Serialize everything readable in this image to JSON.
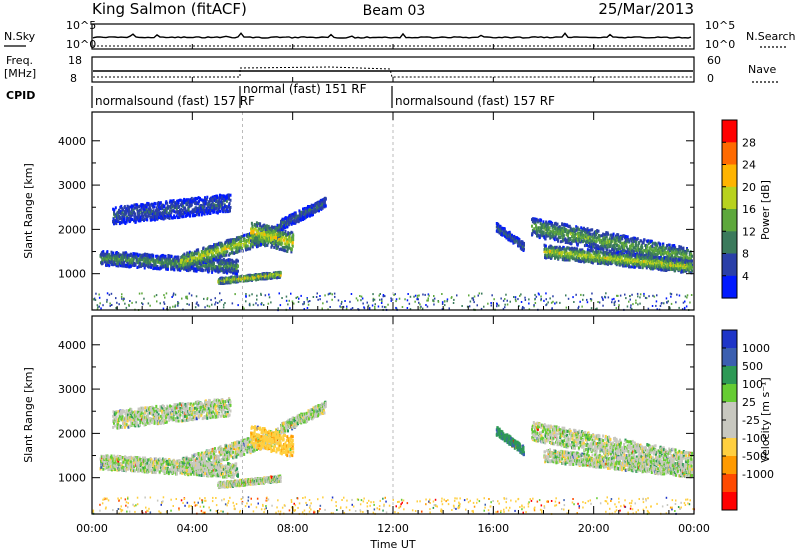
{
  "header": {
    "site": "King Salmon (fitACF)",
    "beam": "Beam 03",
    "date": "25/Mar/2013"
  },
  "noise_panel": {
    "left_label": "N.Sky",
    "right_label": "N.Search",
    "left_ticks": [
      "10^5",
      "10^0"
    ],
    "right_ticks": [
      "10^5",
      "10^0"
    ]
  },
  "freq_panel": {
    "left_label_1": "Freq.",
    "left_label_2": "[MHz]",
    "right_label": "Nave",
    "left_ticks": [
      "18",
      "8"
    ],
    "right_ticks": [
      "60",
      "0"
    ]
  },
  "cpid": {
    "label": "CPID",
    "segments": [
      {
        "start_hour": 0,
        "end_hour": 6,
        "text": "normalsound (fast) 157 RF"
      },
      {
        "start_hour": 6,
        "end_hour": 12,
        "text": "normal (fast) 151 RF"
      },
      {
        "start_hour": 12,
        "end_hour": 24,
        "text": "normalsound (fast) 157 RF"
      }
    ]
  },
  "x_axis": {
    "label": "Time UT",
    "ticks": [
      "00:00",
      "04:00",
      "08:00",
      "12:00",
      "16:00",
      "20:00",
      "00:00"
    ],
    "range_hours": [
      0,
      24
    ]
  },
  "power_panel": {
    "ylabel": "Slant Range [km]",
    "yticks": [
      "4000",
      "3000",
      "2000",
      "1000"
    ],
    "colorbar_label": "Power [dB]",
    "colorbar_ticks": [
      "28",
      "24",
      "20",
      "16",
      "12",
      "8",
      "4"
    ],
    "colors": [
      "#0019ff",
      "#2a3fa8",
      "#3b7a5c",
      "#5ea83c",
      "#b8d21e",
      "#ffb400",
      "#ff6a00",
      "#ff0000"
    ]
  },
  "velocity_panel": {
    "ylabel": "Slant Range [km]",
    "yticks": [
      "4000",
      "3000",
      "2000",
      "1000"
    ],
    "colorbar_label": "Velocity [m s⁻¹]",
    "colorbar_ticks": [
      "1000",
      "500",
      "100",
      "25",
      "-25",
      "-100",
      "-500",
      "-1000"
    ],
    "colors": [
      "#ff0000",
      "#ff4a00",
      "#ff9a00",
      "#ffcf40",
      "#c8c8c0",
      "#c8c8c0",
      "#66cc33",
      "#2d9955",
      "#3b5fb0",
      "#1f35c8"
    ]
  },
  "chart_data": [
    {
      "type": "heatmap",
      "title": "Power [dB]",
      "xlabel": "Time UT",
      "ylabel": "Slant Range [km]",
      "xlim": [
        0,
        24
      ],
      "ylim": [
        180,
        4650
      ],
      "clim": [
        0,
        32
      ],
      "echo_bands": [
        {
          "t0": 0.3,
          "t1": 5.8,
          "r0": 1350,
          "r1": 1150,
          "width": 200,
          "power": 11
        },
        {
          "t0": 3.5,
          "t1": 7.5,
          "r0": 1250,
          "r1": 1950,
          "width": 220,
          "power": 17
        },
        {
          "t0": 0.8,
          "t1": 5.5,
          "r0": 2300,
          "r1": 2600,
          "width": 250,
          "power": 7
        },
        {
          "t0": 6.3,
          "t1": 8.0,
          "r0": 1950,
          "r1": 1700,
          "width": 300,
          "power": 18
        },
        {
          "t0": 7.5,
          "t1": 9.3,
          "r0": 2100,
          "r1": 2600,
          "width": 150,
          "power": 8
        },
        {
          "t0": 5.0,
          "t1": 7.5,
          "r0": 830,
          "r1": 980,
          "width": 80,
          "power": 19
        },
        {
          "t0": 16.1,
          "t1": 17.2,
          "r0": 2050,
          "r1": 1600,
          "width": 120,
          "power": 8
        },
        {
          "t0": 17.5,
          "t1": 23.9,
          "r0": 2050,
          "r1": 1350,
          "width": 260,
          "power": 13
        },
        {
          "t0": 18.0,
          "t1": 23.9,
          "r0": 1500,
          "r1": 1150,
          "width": 180,
          "power": 17
        }
      ]
    },
    {
      "type": "heatmap",
      "title": "Velocity [m s⁻¹]",
      "xlabel": "Time UT",
      "ylabel": "Slant Range [km]",
      "xlim": [
        0,
        24
      ],
      "ylim": [
        180,
        4650
      ],
      "clim": [
        -1000,
        1000
      ],
      "echo_bands": [
        {
          "t0": 0.3,
          "t1": 5.8,
          "r0": 1350,
          "r1": 1150,
          "width": 200,
          "velocity": 0
        },
        {
          "t0": 3.5,
          "t1": 7.5,
          "r0": 1250,
          "r1": 1950,
          "width": 220,
          "velocity": 0
        },
        {
          "t0": 0.8,
          "t1": 5.5,
          "r0": 2300,
          "r1": 2600,
          "width": 250,
          "velocity": 0
        },
        {
          "t0": 6.3,
          "t1": 8.0,
          "r0": 1950,
          "r1": 1700,
          "width": 300,
          "velocity": -80
        },
        {
          "t0": 7.5,
          "t1": 9.3,
          "r0": 2100,
          "r1": 2600,
          "width": 150,
          "velocity": 0
        },
        {
          "t0": 5.0,
          "t1": 7.5,
          "r0": 830,
          "r1": 980,
          "width": 80,
          "velocity": 0
        },
        {
          "t0": 16.1,
          "t1": 17.2,
          "r0": 2050,
          "r1": 1600,
          "width": 120,
          "velocity": 80
        },
        {
          "t0": 17.5,
          "t1": 23.9,
          "r0": 2050,
          "r1": 1350,
          "width": 260,
          "velocity": 0
        },
        {
          "t0": 18.0,
          "t1": 23.9,
          "r0": 1500,
          "r1": 1150,
          "width": 180,
          "velocity": 0
        }
      ]
    }
  ]
}
